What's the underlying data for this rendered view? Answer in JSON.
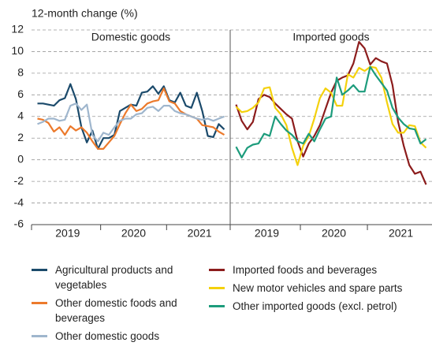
{
  "chart_data": [
    {
      "type": "line",
      "title": "Domestic goods",
      "ylabel": "12-month change (%)",
      "categories": [
        null,
        null,
        null,
        null,
        null,
        null,
        "2019",
        null,
        null,
        null,
        null,
        null,
        null,
        null,
        null,
        null,
        null,
        null,
        "2020",
        null,
        null,
        null,
        null,
        null,
        null,
        null,
        null,
        null,
        null,
        null,
        "2021",
        null,
        null,
        null,
        null
      ],
      "ylim": [
        -6,
        12
      ],
      "yticks": [
        -6,
        -4,
        -2,
        0,
        2,
        4,
        6,
        8,
        10,
        12
      ],
      "grid": true,
      "series": [
        {
          "name": "Agricultural products and vegetables",
          "color": "#1b4a6b",
          "values": [
            5.2,
            5.2,
            5.1,
            5,
            5.5,
            5.7,
            7,
            5.6,
            3,
            1.6,
            2.7,
            1,
            2,
            2,
            2.3,
            4.5,
            4.8,
            5.1,
            5,
            6.2,
            6.3,
            6.8,
            6.1,
            6.8,
            5.5,
            5.3,
            6.2,
            5,
            4.8,
            6.2,
            4.5,
            2.2,
            2.1,
            3.3,
            2.8
          ]
        },
        {
          "name": "Other domestic foods and beverages",
          "color": "#ec7a2c",
          "values": [
            3.8,
            3.7,
            3.4,
            2.6,
            3,
            2.3,
            3.1,
            2.7,
            3,
            2.5,
            1.7,
            1,
            1,
            1.6,
            2.2,
            3.3,
            4.3,
            5.1,
            4.5,
            4.7,
            5.2,
            5.4,
            5.5,
            6.6,
            5.4,
            5.2,
            4.5,
            4.2,
            4,
            3.8,
            3.2,
            3.1,
            3,
            2.6,
            2.3
          ]
        },
        {
          "name": "Other domestic goods",
          "color": "#9fb6cd",
          "values": [
            3.3,
            3.5,
            3.8,
            3.8,
            3.6,
            3.7,
            5,
            5.2,
            4.6,
            5.1,
            2.3,
            1.7,
            2.5,
            2.3,
            3,
            3.6,
            3.8,
            3.8,
            4.2,
            4.3,
            4.8,
            4.9,
            4.5,
            5,
            5,
            4.5,
            4.3,
            4.2,
            4,
            3.8,
            3.7,
            3.8,
            3.6,
            3.8,
            4
          ]
        }
      ]
    },
    {
      "type": "line",
      "title": "Imported goods",
      "categories": [
        null,
        null,
        null,
        null,
        null,
        null,
        "2019",
        null,
        null,
        null,
        null,
        null,
        null,
        null,
        null,
        null,
        null,
        null,
        "2020",
        null,
        null,
        null,
        null,
        null,
        null,
        null,
        null,
        null,
        null,
        null,
        "2021",
        null,
        null,
        null,
        null
      ],
      "ylim": [
        -6,
        12
      ],
      "grid": true,
      "series": [
        {
          "name": "Imported foods and beverages",
          "color": "#8c1c1c",
          "values": [
            5.1,
            3.6,
            2.8,
            3.5,
            5.6,
            6,
            5.8,
            5.2,
            4.7,
            4.2,
            3.8,
            1.7,
            0.3,
            1.5,
            2.2,
            3.2,
            4.7,
            6.2,
            7.3,
            7.6,
            7.8,
            8.9,
            10.9,
            10.3,
            8.8,
            9.4,
            9.1,
            8.9,
            6.9,
            3.5,
            1.3,
            -0.5,
            -1.3,
            -1.1,
            -2.3
          ]
        },
        {
          "name": "New motor vehicles and spare parts",
          "color": "#f4d10c",
          "values": [
            4.9,
            4.4,
            4.5,
            4.8,
            5.3,
            6.6,
            6.7,
            4.8,
            4.2,
            3.2,
            1.1,
            -0.5,
            1.3,
            2.2,
            3.8,
            5.7,
            6.6,
            6.2,
            5,
            5,
            7.9,
            7.6,
            8.5,
            8.2,
            8.6,
            8.5,
            7.6,
            5.3,
            3.3,
            2.5,
            2.5,
            3.2,
            3.1,
            1.6,
            1.1
          ]
        },
        {
          "name": "Other imported goods (excl. petrol)",
          "color": "#1d9c7c",
          "values": [
            1.2,
            0.2,
            1.1,
            1.4,
            1.5,
            2.4,
            2.2,
            4,
            3.3,
            2.7,
            2.3,
            1.7,
            1.5,
            2.4,
            1.7,
            2.8,
            3.8,
            4,
            7.6,
            6,
            6.4,
            6.9,
            6.3,
            6.3,
            8.6,
            7.8,
            7.1,
            6.4,
            4.8,
            3.9,
            3.3,
            2.9,
            2.8,
            1.5,
            1.9
          ]
        }
      ]
    }
  ]
}
